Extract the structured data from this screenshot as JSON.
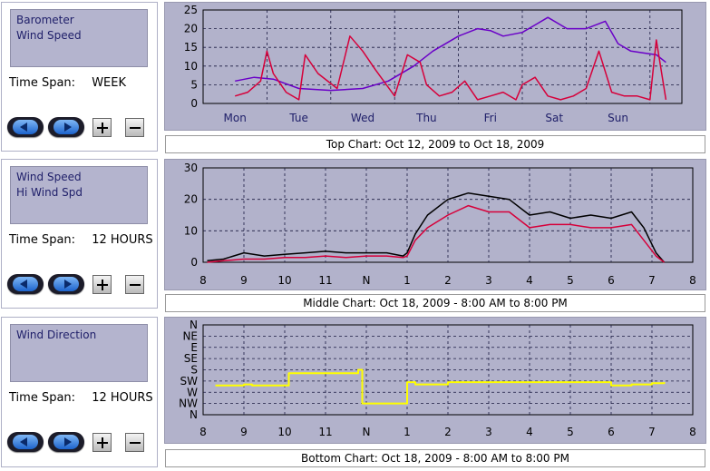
{
  "panels": [
    {
      "list_items": [
        "Barometer",
        "Wind Speed"
      ],
      "time_span_label": "Time Span:",
      "time_span_value": "WEEK",
      "caption": "Top Chart:  Oct 12, 2009  to  Oct 18, 2009"
    },
    {
      "list_items": [
        "Wind Speed",
        "Hi Wind Spd"
      ],
      "time_span_label": "Time Span:",
      "time_span_value": "12 HOURS",
      "caption": "Middle Chart:  Oct 18, 2009 - 8:00 AM  to  8:00 PM"
    },
    {
      "list_items": [
        "Wind Direction"
      ],
      "time_span_label": "Time Span:",
      "time_span_value": "12 HOURS",
      "caption": "Bottom Chart:  Oct 18, 2009 - 8:00 AM  to  8:00 PM"
    }
  ],
  "colors": {
    "chart_bg": "#b2b2cb",
    "barometer": "#6a00c8",
    "wind": "#d6003a",
    "hi_wind": "#000000",
    "direction": "#ffff00",
    "button_blue": "#3a86e8"
  },
  "icons": [
    "left-arrow-icon",
    "right-arrow-icon",
    "plus-icon",
    "minus-icon"
  ],
  "chart_data": [
    {
      "type": "line",
      "x_ticks": [
        "Mon",
        "Tue",
        "Wed",
        "Thu",
        "Fri",
        "Sat",
        "Sun"
      ],
      "y_ticks": [
        "0",
        "5",
        "10",
        "15",
        "20",
        "25"
      ],
      "ylim": [
        0,
        25
      ],
      "grid": true,
      "series": [
        {
          "name": "Barometer",
          "color": "#6a00c8",
          "x": [
            0,
            0.3,
            0.6,
            1.0,
            1.5,
            2.0,
            2.4,
            2.8,
            3.1,
            3.5,
            3.8,
            4.0,
            4.2,
            4.5,
            4.7,
            4.9,
            5.2,
            5.5,
            5.8,
            6.0,
            6.2,
            6.4,
            6.6,
            6.75
          ],
          "values": [
            6,
            7,
            6.5,
            4,
            3.5,
            4,
            6,
            10,
            14,
            18,
            20,
            19.5,
            18,
            19,
            21,
            23,
            20,
            20,
            22,
            16,
            14,
            13.5,
            13,
            11
          ]
        },
        {
          "name": "Wind Speed",
          "color": "#d6003a",
          "x": [
            0,
            0.2,
            0.4,
            0.5,
            0.6,
            0.8,
            1.0,
            1.1,
            1.3,
            1.6,
            1.8,
            2.0,
            2.2,
            2.5,
            2.7,
            2.9,
            3.0,
            3.2,
            3.4,
            3.6,
            3.8,
            4.0,
            4.2,
            4.4,
            4.5,
            4.7,
            4.9,
            5.1,
            5.3,
            5.5,
            5.7,
            5.9,
            6.1,
            6.3,
            6.5,
            6.6,
            6.75
          ],
          "values": [
            2,
            3,
            6,
            14,
            8,
            3,
            1,
            13,
            8,
            4,
            18,
            14,
            9,
            2,
            13,
            11,
            5,
            2,
            3,
            6,
            1,
            2,
            3,
            1,
            5,
            7,
            2,
            1,
            2,
            4,
            14,
            3,
            2,
            2,
            1,
            17,
            1
          ]
        }
      ]
    },
    {
      "type": "line",
      "x_ticks": [
        "8",
        "9",
        "10",
        "11",
        "N",
        "1",
        "2",
        "3",
        "4",
        "5",
        "6",
        "7",
        "8"
      ],
      "y_ticks": [
        "0",
        "10",
        "20",
        "30"
      ],
      "ylim": [
        0,
        30
      ],
      "grid": true,
      "series": [
        {
          "name": "Wind Speed",
          "color": "#d6003a",
          "x": [
            0.1,
            0.5,
            1.0,
            1.5,
            2.0,
            2.5,
            3.0,
            3.5,
            4.0,
            4.5,
            4.9,
            5.0,
            5.2,
            5.5,
            6.0,
            6.5,
            7.0,
            7.5,
            8.0,
            8.5,
            9.0,
            9.5,
            10.0,
            10.5,
            10.8,
            11.1,
            11.3
          ],
          "values": [
            0,
            0.5,
            1,
            1,
            1.5,
            1.5,
            2,
            1.5,
            2,
            2,
            1.5,
            2,
            7,
            11,
            15,
            18,
            16,
            16,
            11,
            12,
            12,
            11,
            11,
            12,
            7,
            2,
            0
          ]
        },
        {
          "name": "Hi Wind Spd",
          "color": "#000000",
          "x": [
            0.1,
            0.5,
            1.0,
            1.5,
            2.0,
            2.5,
            3.0,
            3.5,
            4.0,
            4.5,
            4.9,
            5.0,
            5.2,
            5.5,
            6.0,
            6.5,
            7.0,
            7.5,
            8.0,
            8.5,
            9.0,
            9.5,
            10.0,
            10.5,
            10.8,
            11.1,
            11.3
          ],
          "values": [
            0.5,
            1,
            3,
            2,
            2.5,
            3,
            3.5,
            3,
            3,
            3,
            2,
            3,
            9,
            15,
            20,
            22,
            21,
            20,
            15,
            16,
            14,
            15,
            14,
            16,
            11,
            3,
            0
          ]
        }
      ]
    },
    {
      "type": "line",
      "x_ticks": [
        "8",
        "9",
        "10",
        "11",
        "N",
        "1",
        "2",
        "3",
        "4",
        "5",
        "6",
        "7",
        "8"
      ],
      "y_ticks": [
        "N",
        "NW",
        "W",
        "SW",
        "S",
        "SE",
        "E",
        "NE",
        "N"
      ],
      "ylim": [
        0,
        8
      ],
      "grid": true,
      "series": [
        {
          "name": "Wind Direction",
          "color": "#ffff00",
          "x": [
            0.3,
            1.0,
            1.2,
            2.0,
            2.1,
            3.0,
            3.5,
            3.8,
            3.9,
            4.5,
            4.9,
            5.0,
            5.2,
            6.0,
            7.0,
            8.0,
            9.0,
            9.5,
            10.0,
            10.5,
            11.0,
            11.3
          ],
          "values": [
            2.6,
            2.7,
            2.6,
            2.6,
            3.7,
            3.7,
            3.7,
            4,
            1.0,
            1.0,
            1.0,
            2.9,
            2.7,
            2.9,
            2.9,
            2.9,
            2.9,
            2.9,
            2.6,
            2.7,
            2.8,
            2.9
          ]
        }
      ]
    }
  ]
}
